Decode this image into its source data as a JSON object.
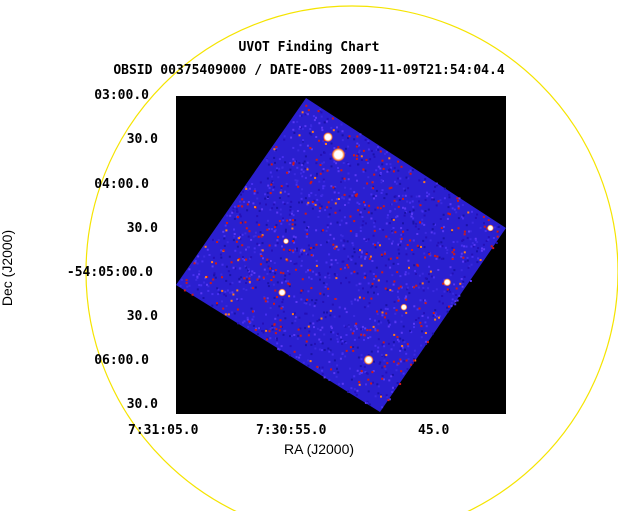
{
  "chart_data": {
    "type": "heatmap",
    "title": "UVOT Finding Chart",
    "subtitle": "OBSID 00375409000 / DATE-OBS 2009-11-09T21:54:04.4",
    "xlabel": "RA (J2000)",
    "ylabel": "Dec (J2000)",
    "x_tick_labels": [
      "7:31:05.0",
      "7:30:55.0",
      "45.0"
    ],
    "y_tick_labels": [
      "03:00.0",
      "30.0",
      "04:00.0",
      "30.0",
      "-54:05:00.0",
      "30.0",
      "06:00.0",
      "30.0"
    ],
    "grid": false,
    "colors": {
      "background": "#000000",
      "field": "#2a1fd0",
      "hot_pixel": "#d01a1a",
      "star": "#ffffff",
      "circle": "#f5e400"
    },
    "overlay": "yellow circle (field of view)",
    "stars": [
      {
        "ra": "7:30:52.6",
        "dec": "-54:03:40"
      },
      {
        "ra": "7:30:53.4",
        "dec": "-54:03:28"
      },
      {
        "ra": "7:30:56.9",
        "dec": "-54:05:14"
      },
      {
        "ra": "7:30:50.3",
        "dec": "-54:06:00"
      },
      {
        "ra": "7:30:44.3",
        "dec": "-54:05:07"
      },
      {
        "ra": "7:30:41.0",
        "dec": "-54:04:30"
      },
      {
        "ra": "7:30:47.6",
        "dec": "-54:05:24"
      },
      {
        "ra": "7:30:56.6",
        "dec": "-54:04:39"
      }
    ]
  }
}
